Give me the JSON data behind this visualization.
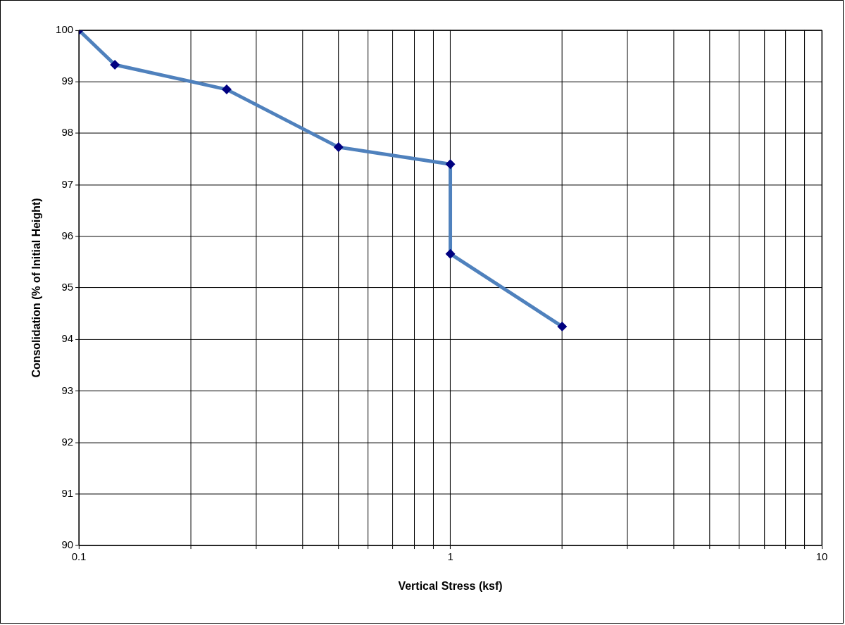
{
  "chart_data": {
    "type": "line",
    "xlabel": "Vertical Stress (ksf)",
    "ylabel": "Consolidation (% of Initial Height)",
    "series": [
      {
        "color": "#4f81bd",
        "x": [
          0.1,
          0.125,
          0.25,
          0.5,
          1,
          1,
          2
        ],
        "values": [
          100,
          99.33,
          98.85,
          97.73,
          97.4,
          95.66,
          94.25
        ]
      }
    ],
    "log": "x",
    "xlim": [
      0.1,
      10
    ],
    "xticks": [
      0.1,
      {
        "value": 0.2,
        "label": null
      },
      {
        "value": 0.3,
        "label": null
      },
      {
        "value": 0.4,
        "label": null
      },
      {
        "value": 0.5,
        "label": null
      },
      {
        "value": 0.6,
        "label": null
      },
      {
        "value": 0.7,
        "label": null
      },
      {
        "value": 0.8,
        "label": null
      },
      {
        "value": 0.9,
        "label": null
      },
      1,
      {
        "value": 2,
        "label": null
      },
      {
        "value": 3,
        "label": null
      },
      {
        "value": 4,
        "label": null
      },
      {
        "value": 5,
        "label": null
      },
      {
        "value": 6,
        "label": null
      },
      {
        "value": 7,
        "label": null
      },
      {
        "value": 8,
        "label": null
      },
      {
        "value": 9,
        "label": null
      },
      10
    ],
    "ylim": [
      90,
      100
    ],
    "yticks": [
      90,
      91,
      92,
      93,
      94,
      95,
      96,
      97,
      98,
      99,
      100
    ],
    "grid": true,
    "legend": false,
    "marker": "diamond",
    "line_style": "solid"
  }
}
